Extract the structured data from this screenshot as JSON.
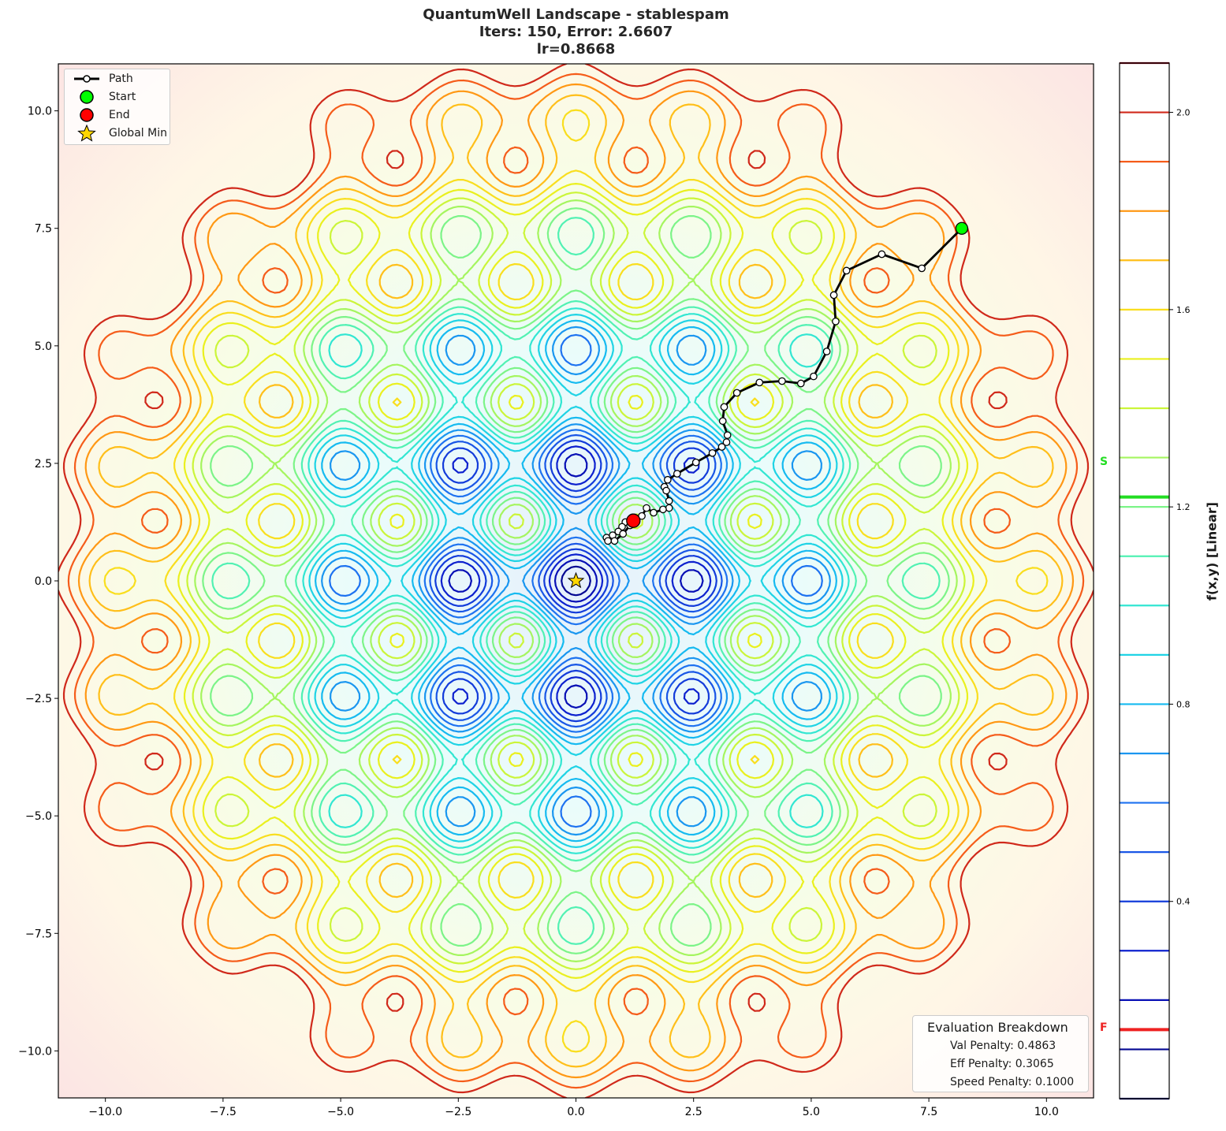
{
  "title": {
    "line1": "QuantumWell Landscape - stablespam",
    "line2": "Iters: 150, Error: 2.6607",
    "line3": "lr=0.8668"
  },
  "legend": {
    "items": [
      {
        "label": "Path",
        "icon": "line-with-circle-marker"
      },
      {
        "label": "Start",
        "icon": "green-circle",
        "color": "#00ff00"
      },
      {
        "label": "End",
        "icon": "red-circle",
        "color": "#ff0000"
      },
      {
        "label": "Global Min",
        "icon": "gold-star",
        "color": "#ffd700"
      }
    ]
  },
  "evaluation": {
    "title": "Evaluation Breakdown",
    "val_penalty": "Val Penalty: 0.4863",
    "eff_penalty": "Eff Penalty: 0.3065",
    "speed_penalty": "Speed Penalty: 0.1000"
  },
  "colorbar": {
    "label": "f(x,y) [Linear]",
    "ticks": [
      "2.0",
      "1.6",
      "1.2",
      "0.8",
      "0.4"
    ],
    "tick_values": [
      2.0,
      1.6,
      1.2,
      0.8,
      0.4
    ],
    "range": [
      0.0,
      2.1
    ],
    "start_marker": {
      "label": "S",
      "value": 1.22,
      "color": "#22dd22"
    },
    "final_marker": {
      "label": "F",
      "value": 0.14,
      "color": "#ee2222"
    }
  },
  "chart_data": {
    "type": "contour",
    "title": "QuantumWell Landscape - stablespam\nIters: 150, Error: 2.6607\nlr=0.8668",
    "xlabel": "",
    "ylabel": "",
    "xlim": [
      -11,
      11
    ],
    "ylim": [
      -11,
      11
    ],
    "xticks": [
      -10.0,
      -7.5,
      -5.0,
      -2.5,
      0.0,
      2.5,
      5.0,
      7.5,
      10.0
    ],
    "yticks": [
      -10.0,
      -7.5,
      -5.0,
      -2.5,
      0.0,
      2.5,
      5.0,
      7.5,
      10.0
    ],
    "xtick_labels": [
      "−10.0",
      "−7.5",
      "−5.0",
      "−2.5",
      "0.0",
      "2.5",
      "5.0",
      "7.5",
      "10.0"
    ],
    "ytick_labels": [
      "10.0",
      "7.5",
      "5.0",
      "2.5",
      "0.0",
      "−2.5",
      "−5.0",
      "−7.5",
      "−10.0"
    ],
    "contour_levels": [
      0.0,
      0.1,
      0.2,
      0.3,
      0.4,
      0.5,
      0.6,
      0.7,
      0.8,
      0.9,
      1.0,
      1.1,
      1.2,
      1.3,
      1.4,
      1.5,
      1.6,
      1.7,
      1.8,
      1.9,
      2.0,
      2.1
    ],
    "colormap": "jet-like (blue low → red high)",
    "global_min": {
      "x": 0.0,
      "y": 0.0
    },
    "start": {
      "x": 8.2,
      "y": 7.5
    },
    "end": {
      "x": 1.22,
      "y": 1.28
    },
    "path": [
      [
        8.2,
        7.5
      ],
      [
        7.35,
        6.65
      ],
      [
        6.5,
        6.95
      ],
      [
        5.75,
        6.6
      ],
      [
        5.48,
        6.08
      ],
      [
        5.52,
        5.52
      ],
      [
        5.33,
        4.88
      ],
      [
        5.05,
        4.35
      ],
      [
        4.78,
        4.2
      ],
      [
        4.38,
        4.25
      ],
      [
        3.9,
        4.22
      ],
      [
        3.42,
        4.0
      ],
      [
        3.15,
        3.7
      ],
      [
        3.12,
        3.4
      ],
      [
        3.22,
        3.1
      ],
      [
        3.2,
        2.95
      ],
      [
        3.1,
        2.85
      ],
      [
        2.9,
        2.72
      ],
      [
        2.55,
        2.52
      ],
      [
        2.15,
        2.28
      ],
      [
        1.95,
        2.15
      ],
      [
        1.88,
        2.0
      ],
      [
        1.92,
        1.92
      ],
      [
        1.98,
        1.7
      ],
      [
        1.98,
        1.55
      ],
      [
        1.85,
        1.52
      ],
      [
        1.65,
        1.45
      ],
      [
        1.5,
        1.55
      ],
      [
        1.4,
        1.38
      ],
      [
        1.2,
        1.35
      ],
      [
        1.05,
        1.25
      ],
      [
        0.98,
        1.15
      ],
      [
        0.9,
        1.05
      ],
      [
        0.78,
        0.97
      ],
      [
        0.65,
        0.92
      ],
      [
        0.68,
        0.85
      ],
      [
        0.82,
        0.85
      ],
      [
        1.0,
        1.0
      ],
      [
        1.15,
        1.18
      ],
      [
        1.22,
        1.28
      ]
    ]
  }
}
